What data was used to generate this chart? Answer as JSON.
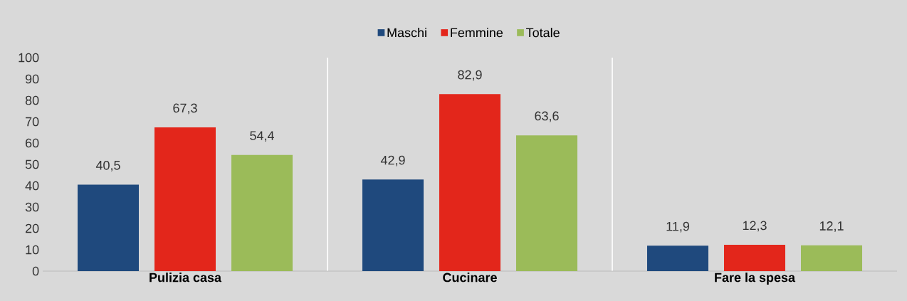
{
  "chart_data": {
    "type": "bar",
    "categories": [
      "Pulizia casa",
      "Cucinare",
      "Fare la spesa"
    ],
    "series": [
      {
        "name": "Maschi",
        "color": "#1f497d",
        "values": [
          40.5,
          42.9,
          11.9
        ],
        "value_labels": [
          "40,5",
          "42,9",
          "11,9"
        ]
      },
      {
        "name": "Femmine",
        "color": "#e3261b",
        "values": [
          67.3,
          82.9,
          12.3
        ],
        "value_labels": [
          "67,3",
          "82,9",
          "12,3"
        ]
      },
      {
        "name": "Totale",
        "color": "#9bbb59",
        "values": [
          54.4,
          63.6,
          12.1
        ],
        "value_labels": [
          "54,4",
          "63,6",
          "12,1"
        ]
      }
    ],
    "ylim": [
      0,
      100
    ],
    "yticks": [
      0,
      10,
      20,
      30,
      40,
      50,
      60,
      70,
      80,
      90,
      100
    ],
    "legend": "top",
    "grid": "x"
  }
}
